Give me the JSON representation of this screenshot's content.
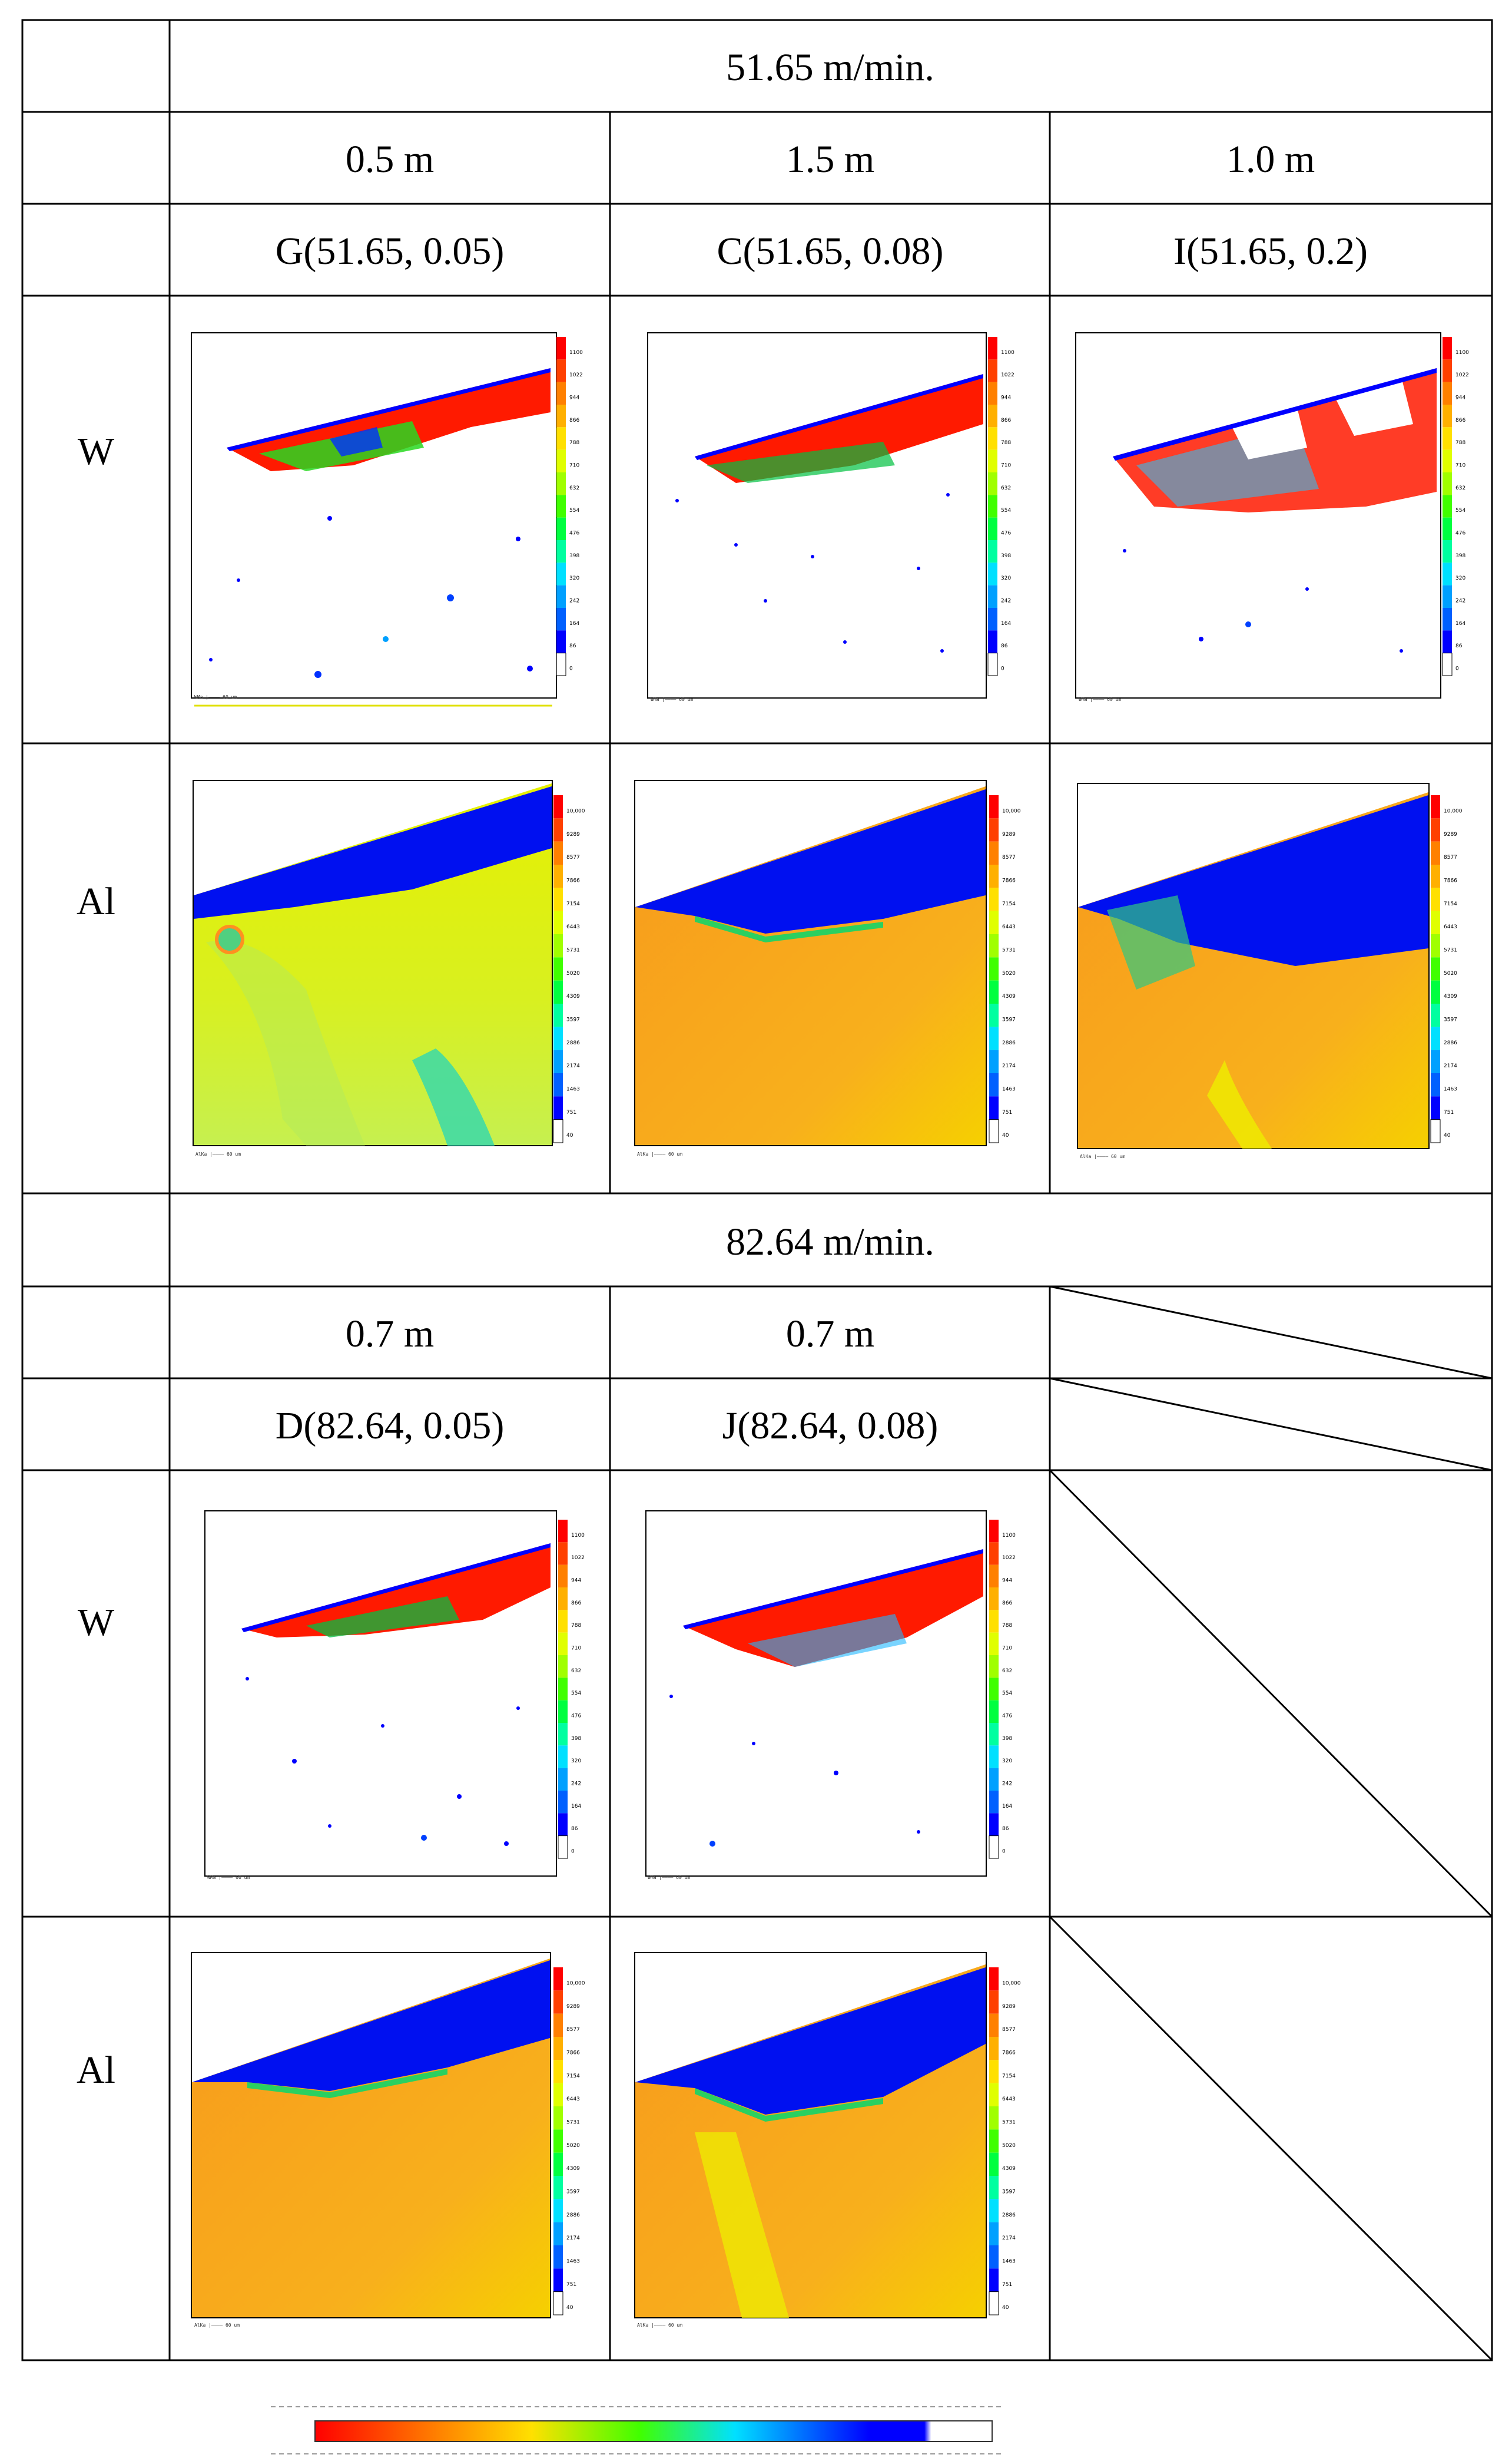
{
  "table": {
    "section1": {
      "speed": "51.65 m/min.",
      "distances": [
        "0.5 m",
        "1.5 m",
        "1.0 m"
      ],
      "conditions": [
        "G(51.65, 0.05)",
        "C(51.65, 0.08)",
        "I(51.65, 0.2)"
      ]
    },
    "section2": {
      "speed": "82.64 m/min.",
      "distances": [
        "0.7 m",
        "0.7 m"
      ],
      "conditions": [
        "D(82.64, 0.05)",
        "J(82.64, 0.08)"
      ]
    },
    "row_labels": {
      "w": "W",
      "al": "Al"
    }
  },
  "maps": {
    "w_scale": [
      "1100",
      "1022",
      "944",
      "866",
      "788",
      "710",
      "632",
      "554",
      "476",
      "398",
      "320",
      "242",
      "164",
      "86",
      "0"
    ],
    "al_scale": [
      "10,000",
      "9289",
      "8577",
      "7866",
      "7154",
      "6443",
      "5731",
      "5020",
      "4309",
      "3597",
      "2886",
      "2174",
      "1463",
      "751",
      "40"
    ],
    "w_caption": "WMa",
    "al_caption": "AlKa",
    "scale_bar_label": "60 um"
  },
  "colors": {
    "scale": [
      "#ff0000",
      "#ff4000",
      "#ff8000",
      "#ffb000",
      "#ffe000",
      "#e0ff00",
      "#a0ff00",
      "#40ff00",
      "#00ff40",
      "#00ffa0",
      "#00e0ff",
      "#00a0ff",
      "#0060ff",
      "#0000ff",
      "#ffffff"
    ],
    "w_base": "#ffffff",
    "al_orange": "#f7a21c",
    "al_yellow": "#e8f000",
    "al_blue": "#0010f0"
  }
}
